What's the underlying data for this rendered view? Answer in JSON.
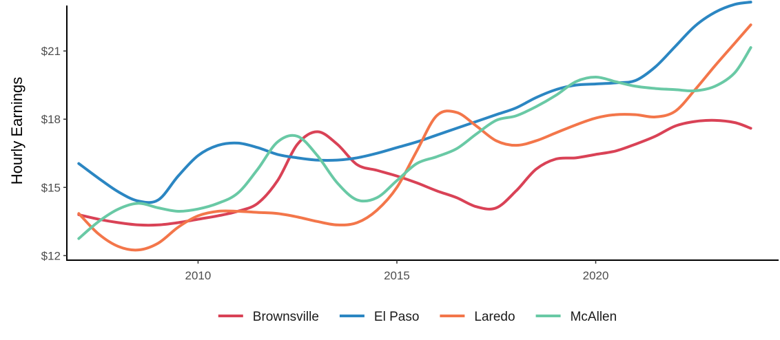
{
  "chart_data": {
    "type": "line",
    "title": "",
    "xlabel": "",
    "ylabel": "Hourly Earnings",
    "xlim": [
      2006.7,
      2024.6
    ],
    "ylim": [
      11.8,
      23.0
    ],
    "x_ticks": [
      2010,
      2015,
      2020
    ],
    "x_tick_labels": [
      "2010",
      "2015",
      "2020"
    ],
    "y_ticks": [
      12,
      15,
      18,
      21
    ],
    "y_tick_labels": [
      "$12",
      "$15",
      "$18",
      "$21"
    ],
    "grid": false,
    "legend_position": "bottom",
    "x": [
      2007.0,
      2007.5,
      2008.0,
      2008.5,
      2009.0,
      2009.5,
      2010.0,
      2010.5,
      2011.0,
      2011.5,
      2012.0,
      2012.5,
      2013.0,
      2013.5,
      2014.0,
      2014.5,
      2015.0,
      2015.5,
      2016.0,
      2016.5,
      2017.0,
      2017.5,
      2018.0,
      2018.5,
      2019.0,
      2019.5,
      2020.0,
      2020.5,
      2021.0,
      2021.5,
      2022.0,
      2022.5,
      2023.0,
      2023.5,
      2023.9
    ],
    "series": [
      {
        "name": "Brownsville",
        "color": "#d94256",
        "values": [
          13.8,
          13.6,
          13.45,
          13.35,
          13.35,
          13.45,
          13.6,
          13.75,
          13.95,
          14.3,
          15.3,
          16.9,
          17.45,
          16.9,
          16.0,
          15.75,
          15.5,
          15.2,
          14.85,
          14.55,
          14.15,
          14.1,
          14.85,
          15.8,
          16.25,
          16.3,
          16.45,
          16.6,
          16.9,
          17.25,
          17.7,
          17.9,
          17.95,
          17.85,
          17.6
        ]
      },
      {
        "name": "El Paso",
        "color": "#2b86c2",
        "values": [
          16.05,
          15.4,
          14.8,
          14.4,
          14.45,
          15.5,
          16.4,
          16.85,
          16.95,
          16.75,
          16.45,
          16.3,
          16.2,
          16.2,
          16.3,
          16.5,
          16.75,
          17.0,
          17.3,
          17.6,
          17.9,
          18.2,
          18.5,
          18.95,
          19.3,
          19.5,
          19.55,
          19.6,
          19.7,
          20.3,
          21.2,
          22.1,
          22.7,
          23.05,
          23.15
        ]
      },
      {
        "name": "Laredo",
        "color": "#f3764a",
        "values": [
          13.85,
          12.95,
          12.4,
          12.25,
          12.55,
          13.25,
          13.75,
          13.95,
          13.95,
          13.9,
          13.85,
          13.7,
          13.5,
          13.35,
          13.45,
          14.0,
          15.0,
          16.6,
          18.15,
          18.3,
          17.7,
          17.05,
          16.85,
          17.05,
          17.4,
          17.75,
          18.05,
          18.2,
          18.2,
          18.1,
          18.35,
          19.3,
          20.35,
          21.35,
          22.15
        ]
      },
      {
        "name": "McAllen",
        "color": "#69c9a5",
        "values": [
          12.75,
          13.5,
          14.05,
          14.3,
          14.1,
          13.95,
          14.05,
          14.3,
          14.75,
          15.8,
          17.0,
          17.25,
          16.4,
          15.2,
          14.45,
          14.55,
          15.3,
          16.05,
          16.35,
          16.7,
          17.35,
          17.95,
          18.15,
          18.55,
          19.05,
          19.65,
          19.85,
          19.65,
          19.45,
          19.35,
          19.3,
          19.25,
          19.45,
          20.05,
          21.15
        ]
      }
    ]
  }
}
